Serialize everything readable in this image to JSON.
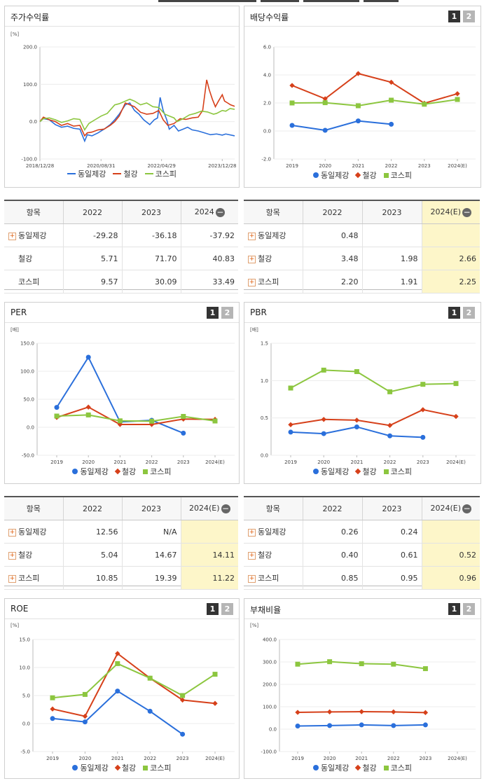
{
  "top_strip": true,
  "panels": {
    "stock": {
      "title": "주가수익률",
      "unit": "[%]",
      "legend": [
        "동일제강",
        "철강",
        "코스피"
      ]
    },
    "dividend": {
      "title": "배당수익률",
      "btn1": "1",
      "btn2": "2",
      "legend": [
        "동일제강",
        "철강",
        "코스피"
      ]
    },
    "per": {
      "title": "PER",
      "unit": "[배]",
      "btn1": "1",
      "btn2": "2",
      "legend": [
        "동일제강",
        "철강",
        "코스피"
      ]
    },
    "pbr": {
      "title": "PBR",
      "unit": "[배]",
      "btn1": "1",
      "btn2": "2",
      "legend": [
        "동일제강",
        "철강",
        "코스피"
      ]
    },
    "roe": {
      "title": "ROE",
      "unit": "[%]",
      "btn1": "1",
      "btn2": "2",
      "legend": [
        "동일제강",
        "철강",
        "코스피"
      ]
    },
    "debt": {
      "title": "부채비율",
      "unit": "[%]",
      "btn1": "1",
      "btn2": "2",
      "legend": [
        "동일제강",
        "철강",
        "코스피"
      ]
    }
  },
  "colors": {
    "company": "#2a6fdb",
    "steel": "#d6401a",
    "kospi": "#8cc63f"
  },
  "tables": {
    "stock": {
      "headers": [
        "항목",
        "2022",
        "2023",
        "2024"
      ],
      "rows": [
        {
          "name": "동일제강",
          "plus": true,
          "values": [
            "-29.28",
            "-36.18",
            "-37.92"
          ]
        },
        {
          "name": "철강",
          "plus": false,
          "values": [
            "5.71",
            "71.70",
            "40.83"
          ]
        },
        {
          "name": "코스피",
          "plus": false,
          "values": [
            "9.57",
            "30.09",
            "33.49"
          ]
        }
      ]
    },
    "dividend": {
      "headers": [
        "항목",
        "2022",
        "2023",
        "2024(E)"
      ],
      "rows": [
        {
          "name": "동일제강",
          "plus": true,
          "values": [
            "0.48",
            "",
            ""
          ]
        },
        {
          "name": "철강",
          "plus": true,
          "values": [
            "3.48",
            "1.98",
            "2.66"
          ]
        },
        {
          "name": "코스피",
          "plus": true,
          "values": [
            "2.20",
            "1.91",
            "2.25"
          ]
        }
      ]
    },
    "per": {
      "headers": [
        "항목",
        "2022",
        "2023",
        "2024(E)"
      ],
      "rows": [
        {
          "name": "동일제강",
          "plus": true,
          "values": [
            "12.56",
            "N/A",
            ""
          ]
        },
        {
          "name": "철강",
          "plus": true,
          "values": [
            "5.04",
            "14.67",
            "14.11"
          ]
        },
        {
          "name": "코스피",
          "plus": true,
          "values": [
            "10.85",
            "19.39",
            "11.22"
          ]
        }
      ]
    },
    "pbr": {
      "headers": [
        "항목",
        "2022",
        "2023",
        "2024(E)"
      ],
      "rows": [
        {
          "name": "동일제강",
          "plus": true,
          "values": [
            "0.26",
            "0.24",
            ""
          ]
        },
        {
          "name": "철강",
          "plus": true,
          "values": [
            "0.40",
            "0.61",
            "0.52"
          ]
        },
        {
          "name": "코스피",
          "plus": true,
          "values": [
            "0.85",
            "0.95",
            "0.96"
          ]
        }
      ]
    }
  },
  "chart_data": [
    {
      "id": "stock",
      "type": "line",
      "title": "주가수익률",
      "ylabel": "[%]",
      "ylim": [
        -100,
        200
      ],
      "yticks": [
        "200.0",
        "100.0",
        "0.0",
        "-100.0"
      ],
      "xticks": [
        "2018/12/28",
        "2020/08/31",
        "2022/04/29",
        "2023/12/28"
      ],
      "x_range": [
        "2018-12-28",
        "2024-04-30"
      ],
      "series": [
        {
          "name": "동일제강",
          "points": [
            [
              "2018-12-28",
              0
            ],
            [
              "2019-02-01",
              8
            ],
            [
              "2019-04-01",
              5
            ],
            [
              "2019-06-01",
              -8
            ],
            [
              "2019-08-01",
              -15
            ],
            [
              "2019-10-01",
              -12
            ],
            [
              "2019-12-01",
              -18
            ],
            [
              "2020-02-01",
              -20
            ],
            [
              "2020-03-20",
              -52
            ],
            [
              "2020-04-15",
              -35
            ],
            [
              "2020-06-01",
              -38
            ],
            [
              "2020-08-01",
              -30
            ],
            [
              "2020-10-01",
              -20
            ],
            [
              "2020-12-01",
              -8
            ],
            [
              "2021-01-15",
              5
            ],
            [
              "2021-03-01",
              20
            ],
            [
              "2021-05-01",
              45
            ],
            [
              "2021-06-15",
              50
            ],
            [
              "2021-08-01",
              30
            ],
            [
              "2021-09-15",
              20
            ],
            [
              "2021-11-01",
              5
            ],
            [
              "2022-01-01",
              -8
            ],
            [
              "2022-02-15",
              5
            ],
            [
              "2022-03-20",
              10
            ],
            [
              "2022-04-15",
              65
            ],
            [
              "2022-05-15",
              30
            ],
            [
              "2022-06-20",
              5
            ],
            [
              "2022-07-15",
              -20
            ],
            [
              "2022-09-01",
              -10
            ],
            [
              "2022-10-15",
              -25
            ],
            [
              "2022-12-01",
              -20
            ],
            [
              "2023-01-15",
              -15
            ],
            [
              "2023-03-01",
              -22
            ],
            [
              "2023-05-01",
              -25
            ],
            [
              "2023-07-01",
              -30
            ],
            [
              "2023-09-01",
              -35
            ],
            [
              "2023-11-01",
              -33
            ],
            [
              "2023-12-28",
              -36
            ],
            [
              "2024-02-01",
              -33
            ],
            [
              "2024-04-30",
              -38
            ]
          ]
        },
        {
          "name": "철강",
          "points": [
            [
              "2018-12-28",
              0
            ],
            [
              "2019-02-01",
              12
            ],
            [
              "2019-04-01",
              5
            ],
            [
              "2019-06-01",
              0
            ],
            [
              "2019-08-01",
              -10
            ],
            [
              "2019-10-01",
              -5
            ],
            [
              "2019-12-01",
              -12
            ],
            [
              "2020-02-01",
              -10
            ],
            [
              "2020-03-20",
              -38
            ],
            [
              "2020-04-15",
              -30
            ],
            [
              "2020-06-01",
              -28
            ],
            [
              "2020-08-01",
              -22
            ],
            [
              "2020-10-01",
              -20
            ],
            [
              "2020-12-01",
              -10
            ],
            [
              "2021-01-15",
              0
            ],
            [
              "2021-03-01",
              15
            ],
            [
              "2021-05-01",
              50
            ],
            [
              "2021-06-15",
              45
            ],
            [
              "2021-08-01",
              40
            ],
            [
              "2021-10-01",
              25
            ],
            [
              "2021-12-01",
              20
            ],
            [
              "2022-02-01",
              22
            ],
            [
              "2022-04-01",
              30
            ],
            [
              "2022-05-15",
              5
            ],
            [
              "2022-07-01",
              -10
            ],
            [
              "2022-09-01",
              -5
            ],
            [
              "2022-11-01",
              8
            ],
            [
              "2022-12-28",
              6
            ],
            [
              "2023-03-01",
              10
            ],
            [
              "2023-05-01",
              12
            ],
            [
              "2023-06-15",
              30
            ],
            [
              "2023-07-25",
              112
            ],
            [
              "2023-08-20",
              85
            ],
            [
              "2023-09-20",
              60
            ],
            [
              "2023-10-20",
              40
            ],
            [
              "2023-11-20",
              55
            ],
            [
              "2023-12-28",
              72
            ],
            [
              "2024-01-20",
              55
            ],
            [
              "2024-02-20",
              50
            ],
            [
              "2024-03-20",
              45
            ],
            [
              "2024-04-30",
              41
            ]
          ]
        },
        {
          "name": "코스피",
          "points": [
            [
              "2018-12-28",
              0
            ],
            [
              "2019-02-01",
              8
            ],
            [
              "2019-04-01",
              10
            ],
            [
              "2019-06-01",
              5
            ],
            [
              "2019-08-01",
              -2
            ],
            [
              "2019-10-01",
              2
            ],
            [
              "2019-12-01",
              8
            ],
            [
              "2020-02-01",
              6
            ],
            [
              "2020-03-20",
              -22
            ],
            [
              "2020-05-01",
              -5
            ],
            [
              "2020-07-01",
              5
            ],
            [
              "2020-09-01",
              15
            ],
            [
              "2020-11-01",
              22
            ],
            [
              "2021-01-15",
              45
            ],
            [
              "2021-03-01",
              48
            ],
            [
              "2021-05-01",
              55
            ],
            [
              "2021-06-15",
              60
            ],
            [
              "2021-08-01",
              55
            ],
            [
              "2021-10-01",
              45
            ],
            [
              "2021-12-01",
              50
            ],
            [
              "2022-02-01",
              40
            ],
            [
              "2022-04-01",
              38
            ],
            [
              "2022-06-01",
              20
            ],
            [
              "2022-07-15",
              15
            ],
            [
              "2022-09-01",
              10
            ],
            [
              "2022-10-01",
              0
            ],
            [
              "2022-12-01",
              8
            ],
            [
              "2023-02-01",
              18
            ],
            [
              "2023-04-01",
              22
            ],
            [
              "2023-06-01",
              28
            ],
            [
              "2023-08-01",
              26
            ],
            [
              "2023-10-01",
              20
            ],
            [
              "2023-11-01",
              22
            ],
            [
              "2023-12-28",
              30
            ],
            [
              "2024-02-01",
              28
            ],
            [
              "2024-03-15",
              35
            ],
            [
              "2024-04-30",
              33
            ]
          ]
        }
      ],
      "legend": "bottom"
    },
    {
      "id": "dividend",
      "type": "line",
      "title": "배당수익률",
      "categories": [
        "2019",
        "2020",
        "2021",
        "2022",
        "2023",
        "2024(E)"
      ],
      "ylim": [
        -2,
        6
      ],
      "yticks": [
        "6.0",
        "4.0",
        "2.0",
        "0.0",
        "-2.0"
      ],
      "series": [
        {
          "name": "동일제강",
          "values": [
            0.4,
            0.05,
            0.72,
            0.48,
            null,
            null
          ]
        },
        {
          "name": "철강",
          "values": [
            3.25,
            2.3,
            4.1,
            3.48,
            1.98,
            2.66
          ]
        },
        {
          "name": "코스피",
          "values": [
            2.0,
            2.02,
            1.8,
            2.2,
            1.91,
            2.25
          ]
        }
      ],
      "legend": "bottom"
    },
    {
      "id": "per",
      "type": "line",
      "title": "PER",
      "ylabel": "[배]",
      "categories": [
        "2019",
        "2020",
        "2021",
        "2022",
        "2023",
        "2024(E)"
      ],
      "ylim": [
        -50,
        150
      ],
      "yticks": [
        "150.0",
        "100.0",
        "50.0",
        "0.0",
        "-50.0"
      ],
      "series": [
        {
          "name": "동일제강",
          "values": [
            35.5,
            125.0,
            9.5,
            12.56,
            -10.5,
            null
          ]
        },
        {
          "name": "철강",
          "values": [
            17.5,
            36.0,
            5.0,
            5.04,
            14.67,
            14.11
          ]
        },
        {
          "name": "코스피",
          "values": [
            20.0,
            22.0,
            11.5,
            10.85,
            19.39,
            11.22
          ]
        }
      ],
      "legend": "bottom"
    },
    {
      "id": "pbr",
      "type": "line",
      "title": "PBR",
      "ylabel": "[배]",
      "categories": [
        "2019",
        "2020",
        "2021",
        "2022",
        "2023",
        "2024(E)"
      ],
      "ylim": [
        0,
        1.5
      ],
      "yticks": [
        "1.5",
        "1.0",
        "0.5",
        "0.0"
      ],
      "series": [
        {
          "name": "동일제강",
          "values": [
            0.31,
            0.29,
            0.38,
            0.26,
            0.24,
            null
          ]
        },
        {
          "name": "철강",
          "values": [
            0.41,
            0.48,
            0.47,
            0.4,
            0.61,
            0.52
          ]
        },
        {
          "name": "코스피",
          "values": [
            0.9,
            1.14,
            1.12,
            0.85,
            0.95,
            0.96
          ]
        }
      ],
      "legend": "bottom"
    },
    {
      "id": "roe",
      "type": "line",
      "title": "ROE",
      "ylabel": "[%]",
      "categories": [
        "2019",
        "2020",
        "2021",
        "2022",
        "2023",
        "2024(E)"
      ],
      "ylim": [
        -5,
        15
      ],
      "yticks": [
        "15.0",
        "10.0",
        "5.0",
        "0.0",
        "-5.0"
      ],
      "series": [
        {
          "name": "동일제강",
          "values": [
            0.9,
            0.3,
            5.8,
            2.2,
            -1.9,
            null
          ]
        },
        {
          "name": "철강",
          "values": [
            2.6,
            1.3,
            12.5,
            8.1,
            4.2,
            3.6
          ]
        },
        {
          "name": "코스피",
          "values": [
            4.6,
            5.2,
            10.7,
            8.1,
            5.0,
            8.8
          ]
        }
      ],
      "legend": "bottom"
    },
    {
      "id": "debt",
      "type": "line",
      "title": "부채비율",
      "ylabel": "[%]",
      "categories": [
        "2019",
        "2020",
        "2021",
        "2022",
        "2023",
        "2024(E)"
      ],
      "ylim": [
        -100,
        400
      ],
      "yticks": [
        "400.0",
        "300.0",
        "200.0",
        "100.0",
        "0.0",
        "-100.0"
      ],
      "series": [
        {
          "name": "동일제강",
          "values": [
            14,
            16,
            19,
            16,
            19,
            null
          ]
        },
        {
          "name": "철강",
          "values": [
            75,
            77,
            78,
            77,
            74,
            null
          ]
        },
        {
          "name": "코스피",
          "values": [
            290,
            301,
            292,
            290,
            270,
            null
          ]
        }
      ],
      "legend": "bottom"
    }
  ]
}
